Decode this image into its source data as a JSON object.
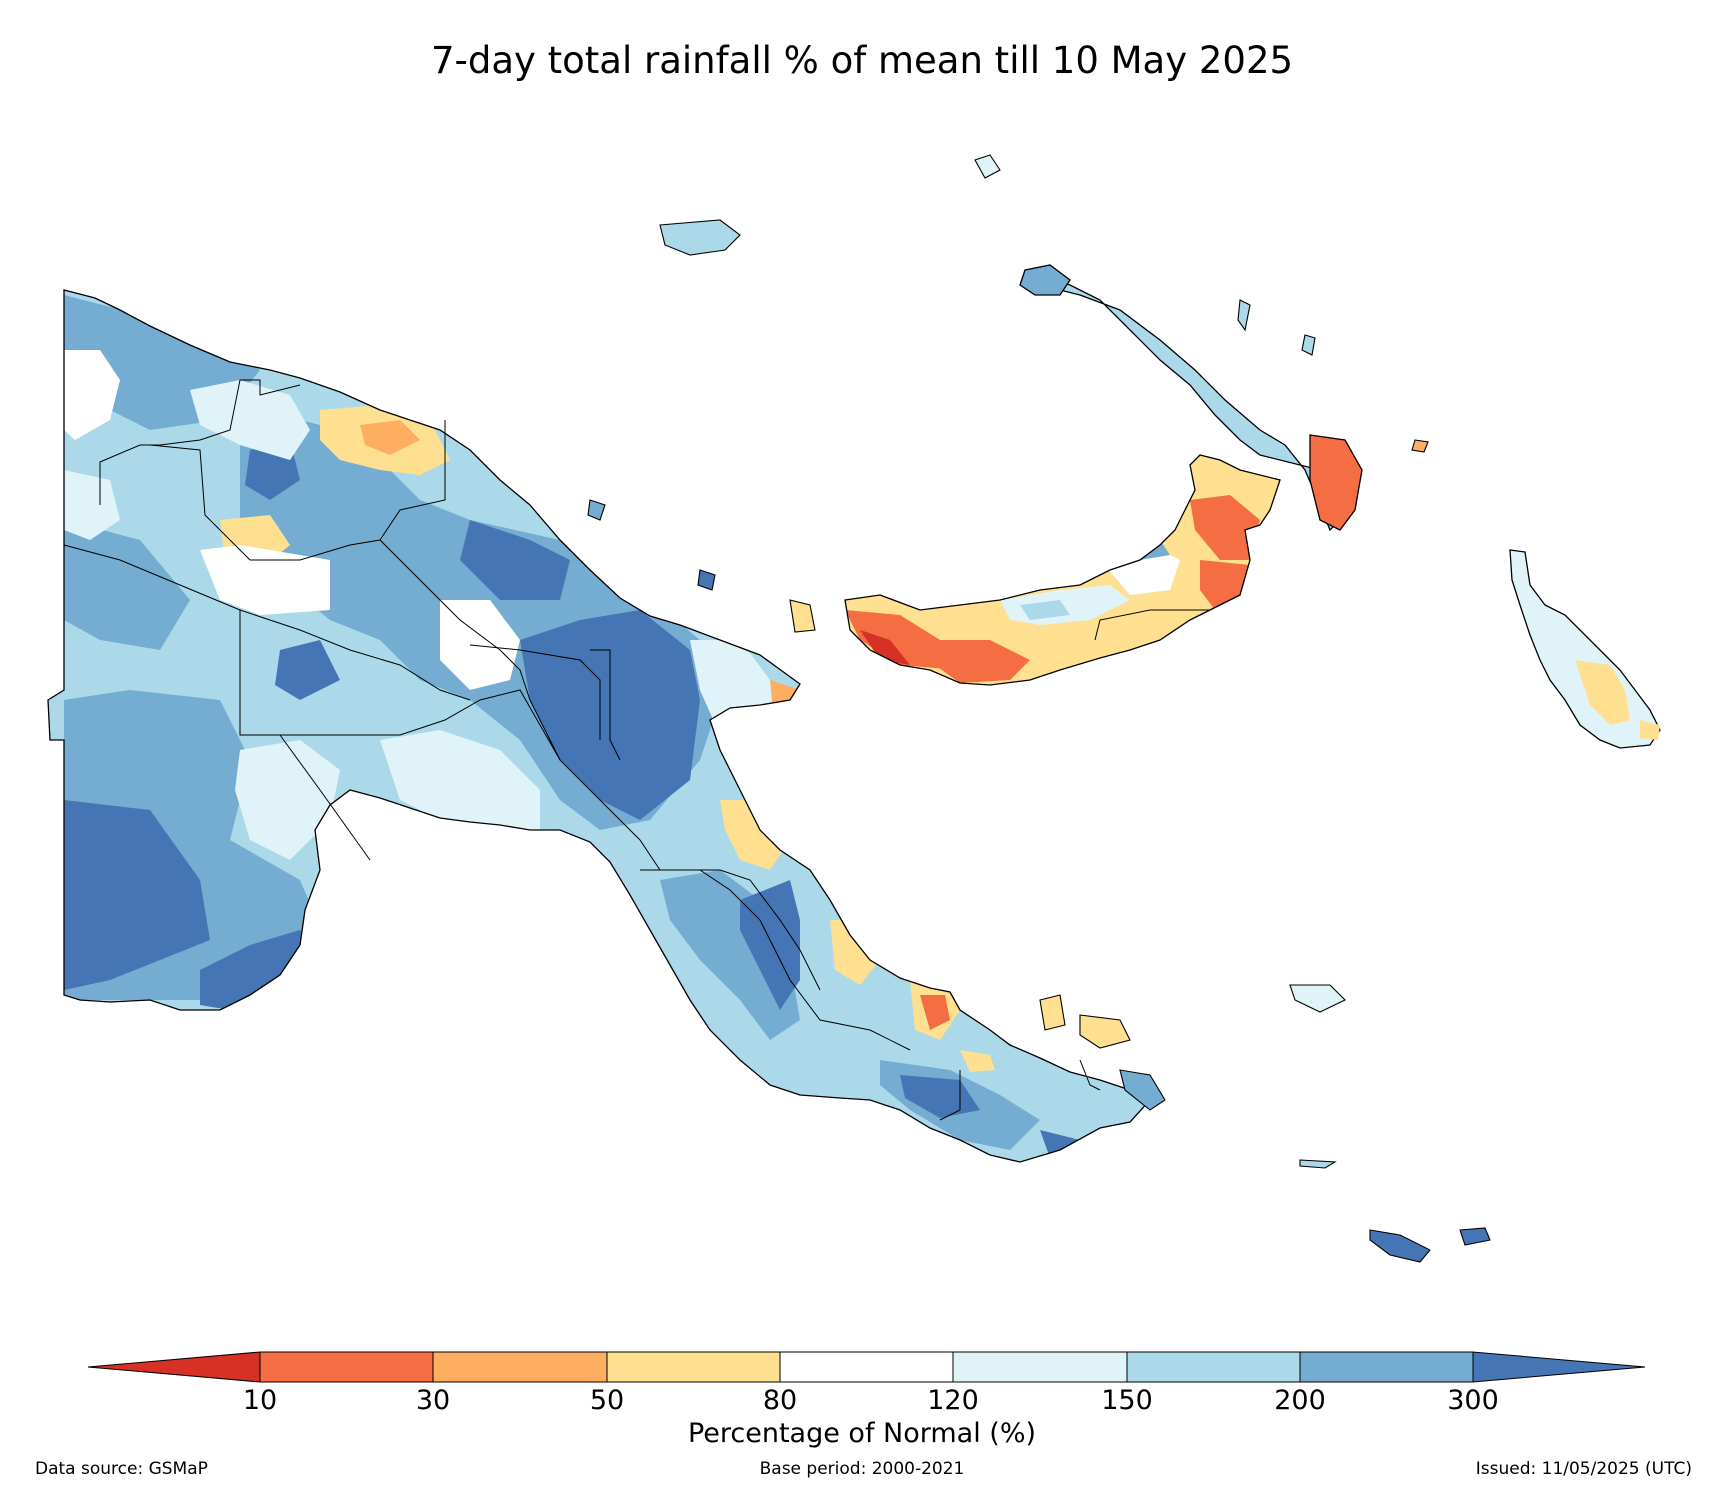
{
  "title": "7-day total rainfall % of mean till 10 May 2025",
  "legend": {
    "label": "Percentage of Normal (%)",
    "ticks": [
      "10",
      "30",
      "50",
      "80",
      "120",
      "150",
      "200",
      "300"
    ],
    "colors": {
      "lt_10": "#d73027",
      "c10_30": "#f46d43",
      "c30_50": "#fdae61",
      "c50_80": "#fee090",
      "c80_120": "#ffffff",
      "c120_150": "#e0f3f8",
      "c150_200": "#abd9e9",
      "c200_300": "#74add1",
      "gt_300": "#4575b4"
    }
  },
  "footer": {
    "source": "Data source: GSMaP",
    "base_period": "Base period: 2000-2021",
    "issued": "Issued: 11/05/2025 (UTC)"
  }
}
